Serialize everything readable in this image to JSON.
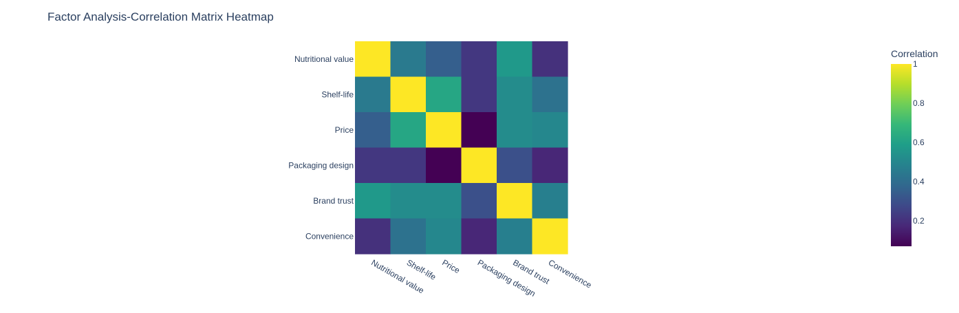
{
  "chart_data": {
    "type": "heatmap",
    "title": "Factor Analysis-Correlation Matrix Heatmap",
    "x_categories": [
      "Nutritional value",
      "Shelf-life",
      "Price",
      "Packaging design",
      "Brand trust",
      "Convenience"
    ],
    "y_categories": [
      "Nutritional value",
      "Shelf-life",
      "Price",
      "Packaging design",
      "Brand trust",
      "Convenience"
    ],
    "values": [
      [
        1.0,
        0.45,
        0.35,
        0.22,
        0.57,
        0.2
      ],
      [
        0.45,
        1.0,
        0.62,
        0.22,
        0.52,
        0.42
      ],
      [
        0.35,
        0.62,
        1.0,
        0.07,
        0.52,
        0.5
      ],
      [
        0.22,
        0.22,
        0.07,
        1.0,
        0.3,
        0.17
      ],
      [
        0.57,
        0.52,
        0.52,
        0.3,
        1.0,
        0.47
      ],
      [
        0.2,
        0.42,
        0.5,
        0.17,
        0.47,
        1.0
      ]
    ],
    "colorscale": "Viridis",
    "zmin": 0.07,
    "zmax": 1.0,
    "colorbar": {
      "title": "Correlation",
      "tickvals": [
        0.2,
        0.4,
        0.6,
        0.8,
        1
      ],
      "ticktext": [
        "0.2",
        "0.4",
        "0.6",
        "0.8",
        "1"
      ]
    },
    "grid": false,
    "x_tick_rotation": 30
  }
}
